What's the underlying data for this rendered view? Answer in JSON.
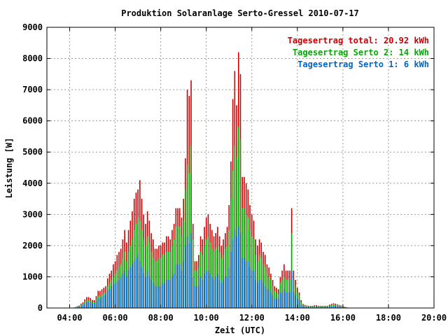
{
  "chart_data": {
    "type": "bar",
    "title": "Produktion Solaranlage Serto-Gressel 2010-07-17",
    "xlabel": "Zeit (UTC)",
    "ylabel": "Leistung [W]",
    "xlim": [
      "03:00",
      "20:00"
    ],
    "ylim": [
      0,
      9000
    ],
    "x_ticks": [
      "04:00",
      "06:00",
      "08:00",
      "10:00",
      "12:00",
      "14:00",
      "16:00",
      "18:00",
      "20:00"
    ],
    "y_ticks": [
      "0",
      "1000",
      "2000",
      "3000",
      "4000",
      "5000",
      "6000",
      "7000",
      "8000",
      "9000"
    ],
    "grid": true,
    "stacked": true,
    "legend": {
      "position": "top-right",
      "entries": [
        {
          "text": "Tagesertrag total: 20.92 kWh",
          "color": "#cc0000"
        },
        {
          "text": "Tagesertrag Serto 2: 14 kWh",
          "color": "#00aa00"
        },
        {
          "text": "Tagesertrag Serto 1: 6 kWh",
          "color": "#0066cc"
        }
      ]
    },
    "series": [
      {
        "name": "Serto 1",
        "color": "#0066cc"
      },
      {
        "name": "Serto 2",
        "color": "#00aa00"
      },
      {
        "name": "total",
        "color": "#cc0000"
      }
    ],
    "x": [
      "04:00",
      "04:05",
      "04:10",
      "04:15",
      "04:20",
      "04:25",
      "04:30",
      "04:35",
      "04:40",
      "04:45",
      "04:50",
      "04:55",
      "05:00",
      "05:05",
      "05:10",
      "05:15",
      "05:20",
      "05:25",
      "05:30",
      "05:35",
      "05:40",
      "05:45",
      "05:50",
      "05:55",
      "06:00",
      "06:05",
      "06:10",
      "06:15",
      "06:20",
      "06:25",
      "06:30",
      "06:35",
      "06:40",
      "06:45",
      "06:50",
      "06:55",
      "07:00",
      "07:05",
      "07:10",
      "07:15",
      "07:20",
      "07:25",
      "07:30",
      "07:35",
      "07:40",
      "07:45",
      "07:50",
      "07:55",
      "08:00",
      "08:05",
      "08:10",
      "08:15",
      "08:20",
      "08:25",
      "08:30",
      "08:35",
      "08:40",
      "08:45",
      "08:50",
      "08:55",
      "09:00",
      "09:05",
      "09:10",
      "09:15",
      "09:20",
      "09:25",
      "09:30",
      "09:35",
      "09:40",
      "09:45",
      "09:50",
      "09:55",
      "10:00",
      "10:05",
      "10:10",
      "10:15",
      "10:20",
      "10:25",
      "10:30",
      "10:35",
      "10:40",
      "10:45",
      "10:50",
      "10:55",
      "11:00",
      "11:05",
      "11:10",
      "11:15",
      "11:20",
      "11:25",
      "11:30",
      "11:35",
      "11:40",
      "11:45",
      "11:50",
      "11:55",
      "12:00",
      "12:05",
      "12:10",
      "12:15",
      "12:20",
      "12:25",
      "12:30",
      "12:35",
      "12:40",
      "12:45",
      "12:50",
      "12:55",
      "13:00",
      "13:05",
      "13:10",
      "13:15",
      "13:20",
      "13:25",
      "13:30",
      "13:35",
      "13:40",
      "13:45",
      "13:50",
      "13:55",
      "14:00",
      "14:05",
      "14:10",
      "14:15",
      "14:20",
      "14:25",
      "14:30",
      "14:35",
      "14:40",
      "14:45",
      "14:50",
      "14:55",
      "15:00",
      "15:05",
      "15:10",
      "15:15",
      "15:20",
      "15:25",
      "15:30",
      "15:35",
      "15:40",
      "15:45",
      "15:50",
      "15:55",
      "16:00",
      "16:05",
      "16:10",
      "16:15",
      "16:20",
      "16:25",
      "16:30"
    ],
    "serto1": [
      0,
      0,
      10,
      20,
      30,
      50,
      70,
      90,
      150,
      200,
      200,
      180,
      150,
      130,
      200,
      300,
      300,
      350,
      400,
      450,
      550,
      600,
      700,
      750,
      800,
      850,
      900,
      1000,
      1100,
      1200,
      1000,
      1200,
      1300,
      1400,
      1500,
      1600,
      1700,
      1500,
      1300,
      1100,
      1000,
      1200,
      1000,
      900,
      800,
      700,
      700,
      700,
      700,
      800,
      800,
      900,
      900,
      900,
      1000,
      1100,
      1400,
      1400,
      1400,
      1200,
      1500,
      2000,
      2300,
      2100,
      2400,
      1000,
      700,
      700,
      700,
      1000,
      900,
      1100,
      1200,
      1200,
      1100,
      1000,
      900,
      1000,
      1100,
      900,
      800,
      900,
      1000,
      1000,
      1300,
      1800,
      2200,
      2500,
      2300,
      2600,
      2400,
      1600,
      1600,
      1500,
      1500,
      1300,
      1200,
      1200,
      900,
      800,
      900,
      900,
      800,
      700,
      600,
      600,
      500,
      400,
      300,
      300,
      300,
      500,
      500,
      600,
      500,
      500,
      500,
      1200,
      500,
      400,
      300,
      250,
      100,
      60,
      50,
      40,
      30,
      30,
      30,
      40,
      40,
      30,
      30,
      30,
      30,
      30,
      30,
      50,
      60,
      70,
      70,
      60,
      50,
      40,
      30,
      20,
      10,
      5,
      0,
      0,
      0
    ],
    "serto2": [
      0,
      0,
      10,
      20,
      40,
      60,
      100,
      130,
      200,
      250,
      250,
      220,
      180,
      180,
      270,
      370,
      390,
      430,
      470,
      500,
      700,
      800,
      900,
      1000,
      1100,
      1200,
      1300,
      1400,
      1600,
      1800,
      1500,
      1800,
      2000,
      2200,
      2500,
      2700,
      2900,
      2800,
      2500,
      2200,
      2000,
      2300,
      2100,
      1800,
      1600,
      1500,
      1500,
      1600,
      1600,
      1700,
      1700,
      1800,
      1800,
      1800,
      2000,
      2200,
      2600,
      2600,
      2600,
      2300,
      2800,
      3800,
      4600,
      4300,
      5200,
      2200,
      1200,
      1200,
      1300,
      1800,
      1700,
      2000,
      2200,
      2300,
      2100,
      1900,
      1800,
      1900,
      2000,
      1800,
      1600,
      1700,
      1900,
      2000,
      2500,
      3500,
      4400,
      5200,
      4800,
      5800,
      5400,
      3200,
      3200,
      3000,
      2900,
      2500,
      2300,
      2200,
      1700,
      1500,
      1700,
      1600,
      1400,
      1300,
      1100,
      1000,
      900,
      700,
      550,
      500,
      450,
      800,
      900,
      1000,
      900,
      900,
      900,
      2400,
      900,
      700,
      500,
      400,
      200,
      100,
      80,
      60,
      50,
      50,
      50,
      70,
      70,
      50,
      50,
      50,
      50,
      50,
      50,
      80,
      100,
      120,
      110,
      100,
      80,
      60,
      50,
      30,
      20,
      10,
      0,
      0,
      0
    ],
    "total": [
      0,
      0,
      15,
      30,
      60,
      80,
      140,
      180,
      280,
      350,
      350,
      320,
      260,
      250,
      380,
      550,
      550,
      600,
      650,
      700,
      950,
      1100,
      1200,
      1400,
      1500,
      1700,
      1800,
      1900,
      2200,
      2500,
      2100,
      2500,
      2800,
      3100,
      3500,
      3700,
      3800,
      4100,
      3500,
      3000,
      2700,
      3100,
      2800,
      2400,
      2200,
      1900,
      1900,
      2000,
      2000,
      2100,
      2100,
      2300,
      2300,
      2200,
      2500,
      2700,
      3200,
      3200,
      3200,
      2900,
      3500,
      4800,
      7000,
      6800,
      7300,
      2700,
      1500,
      1500,
      1700,
      2300,
      2200,
      2600,
      2900,
      3000,
      2700,
      2500,
      2300,
      2400,
      2600,
      2300,
      2000,
      2200,
      2400,
      2600,
      3300,
      4700,
      6700,
      7600,
      6500,
      8200,
      7500,
      4200,
      4200,
      4000,
      3800,
      3300,
      3000,
      2800,
      2200,
      2000,
      2200,
      2100,
      1800,
      1700,
      1400,
      1300,
      1100,
      900,
      700,
      650,
      600,
      1000,
      1200,
      1400,
      1200,
      1200,
      1200,
      3200,
      1200,
      900,
      650,
      500,
      250,
      130,
      100,
      80,
      70,
      70,
      70,
      90,
      90,
      70,
      70,
      70,
      70,
      70,
      70,
      110,
      130,
      150,
      140,
      120,
      100,
      80,
      60,
      40,
      25,
      10,
      0,
      0,
      0
    ]
  }
}
